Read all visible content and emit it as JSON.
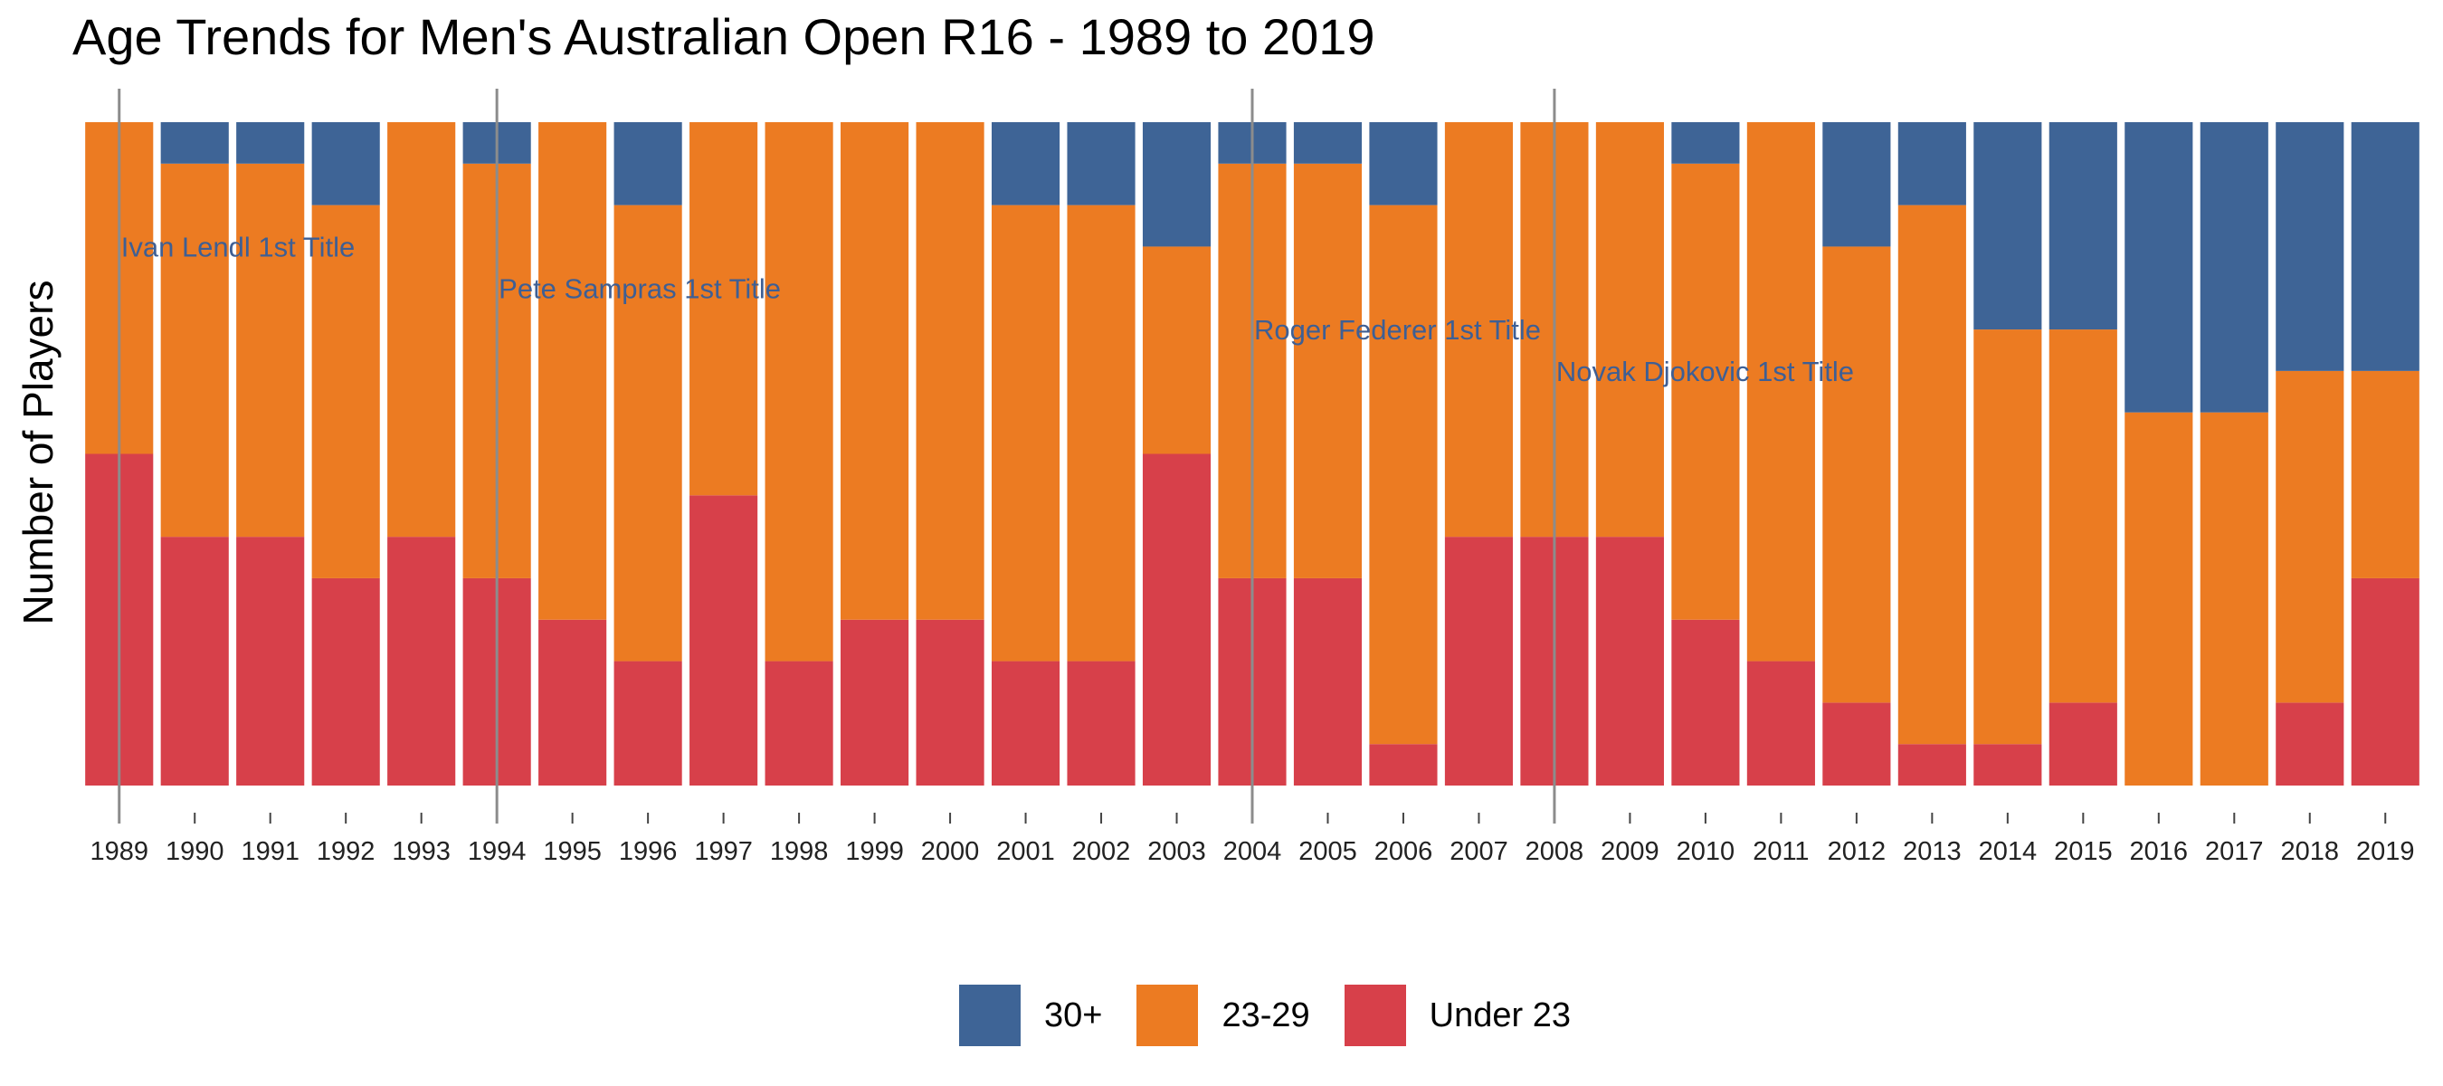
{
  "chart_data": {
    "type": "bar",
    "stacked": true,
    "title": "Age Trends for Men's Australian Open R16 - 1989 to 2019",
    "xlabel": "",
    "ylabel": "Number of Players",
    "ylim": [
      0,
      16
    ],
    "grid": false,
    "legend_position": "bottom",
    "categories": [
      "1989",
      "1990",
      "1991",
      "1992",
      "1993",
      "1994",
      "1995",
      "1996",
      "1997",
      "1998",
      "1999",
      "2000",
      "2001",
      "2002",
      "2003",
      "2004",
      "2005",
      "2006",
      "2007",
      "2008",
      "2009",
      "2010",
      "2011",
      "2012",
      "2013",
      "2014",
      "2015",
      "2016",
      "2017",
      "2018",
      "2019"
    ],
    "series": [
      {
        "name": "Under 23",
        "color": "#d7404a",
        "values": [
          8,
          6,
          6,
          5,
          6,
          5,
          4,
          3,
          7,
          3,
          4,
          4,
          3,
          3,
          8,
          5,
          5,
          1,
          6,
          6,
          6,
          4,
          3,
          2,
          1,
          1,
          2,
          0,
          0,
          2,
          5
        ]
      },
      {
        "name": "23-29",
        "color": "#ec7b22",
        "values": [
          8,
          9,
          9,
          9,
          10,
          10,
          12,
          11,
          9,
          13,
          12,
          12,
          11,
          11,
          5,
          10,
          10,
          13,
          10,
          10,
          10,
          11,
          13,
          11,
          13,
          10,
          9,
          9,
          9,
          8,
          5
        ]
      },
      {
        "name": "30+",
        "color": "#3e6496",
        "values": [
          0,
          1,
          1,
          2,
          0,
          1,
          0,
          2,
          0,
          0,
          0,
          0,
          2,
          2,
          3,
          1,
          1,
          2,
          0,
          0,
          0,
          1,
          0,
          3,
          2,
          5,
          5,
          7,
          7,
          6,
          6
        ]
      }
    ],
    "annotations": [
      {
        "year": "1989",
        "text": "Ivan Lendl 1st Title",
        "y": 13
      },
      {
        "year": "1994",
        "text": "Pete Sampras 1st Title",
        "y": 12
      },
      {
        "year": "2004",
        "text": "Roger Federer 1st Title",
        "y": 11
      },
      {
        "year": "2008",
        "text": "Novak Djokovic 1st Title",
        "y": 10
      }
    ],
    "legend": [
      {
        "label": "30+",
        "color": "#3e6496"
      },
      {
        "label": "23-29",
        "color": "#ec7b22"
      },
      {
        "label": "Under 23",
        "color": "#d7404a"
      }
    ]
  }
}
